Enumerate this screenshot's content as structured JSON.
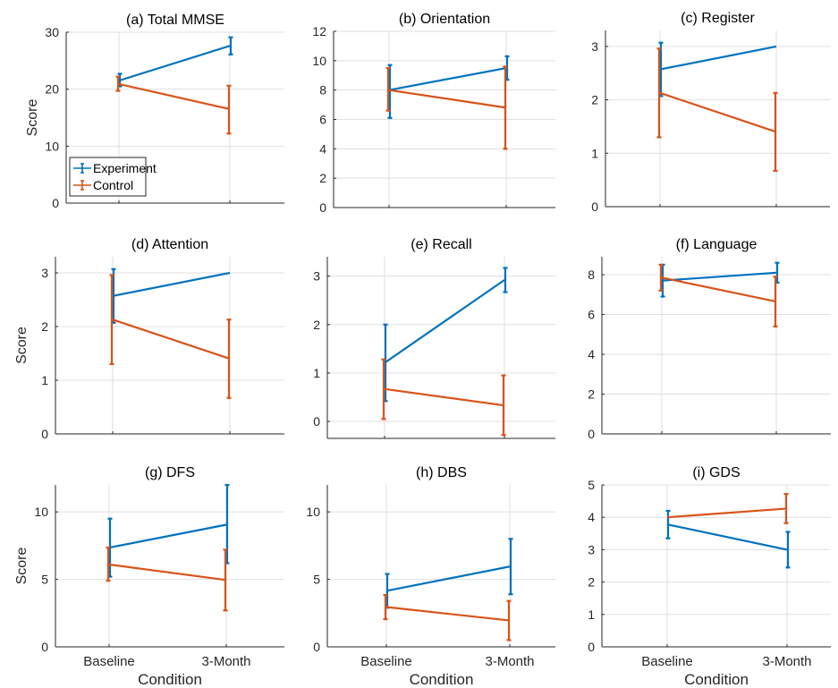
{
  "colors": {
    "experiment": "#0072BD",
    "control": "#D95319",
    "axis": "#262626",
    "grid": "#DFDFDF"
  },
  "chart_data": [
    {
      "type": "line",
      "title": "(a) Total MMSE",
      "ylabel": "Score",
      "xlabel": "",
      "categories": [
        "",
        ""
      ],
      "ylim": [
        0,
        30
      ],
      "yticks": [
        "0",
        "10",
        "20",
        "30"
      ],
      "grid": true,
      "legend": {
        "placement": "bottom-left",
        "entries": [
          "Experiment",
          "Control"
        ]
      },
      "series": [
        {
          "name": "Experiment",
          "values": [
            21.5,
            27.6
          ],
          "err_low": [
            20.5,
            26.1
          ],
          "err_high": [
            22.7,
            29.1
          ]
        },
        {
          "name": "Control",
          "values": [
            20.9,
            16.5
          ],
          "err_low": [
            19.7,
            12.2
          ],
          "err_high": [
            22.2,
            20.6
          ]
        }
      ]
    },
    {
      "type": "line",
      "title": "(b) Orientation",
      "ylabel": "",
      "xlabel": "",
      "categories": [
        "",
        ""
      ],
      "ylim": [
        0,
        12
      ],
      "yticks": [
        "0",
        "2",
        "4",
        "6",
        "8",
        "10",
        "12"
      ],
      "grid": true,
      "series": [
        {
          "name": "Experiment",
          "values": [
            8.0,
            9.5
          ],
          "err_low": [
            6.1,
            8.7
          ],
          "err_high": [
            9.7,
            10.3
          ]
        },
        {
          "name": "Control",
          "values": [
            8.0,
            6.8
          ],
          "err_low": [
            6.6,
            4.0
          ],
          "err_high": [
            9.5,
            9.6
          ]
        }
      ]
    },
    {
      "type": "line",
      "title": "(c) Register",
      "ylabel": "",
      "xlabel": "",
      "categories": [
        "",
        ""
      ],
      "ylim": [
        0,
        3.3
      ],
      "yticks": [
        "0",
        "1",
        "2",
        "3"
      ],
      "grid": true,
      "series": [
        {
          "name": "Experiment",
          "values": [
            2.57,
            3.0
          ],
          "err_low": [
            2.07,
            3.0
          ],
          "err_high": [
            3.07,
            3.0
          ]
        },
        {
          "name": "Control",
          "values": [
            2.13,
            1.4
          ],
          "err_low": [
            1.3,
            0.67
          ],
          "err_high": [
            2.96,
            2.13
          ]
        }
      ]
    },
    {
      "type": "line",
      "title": "(d) Attention",
      "ylabel": "Score",
      "xlabel": "",
      "categories": [
        "",
        ""
      ],
      "ylim": [
        0,
        3.3
      ],
      "yticks": [
        "0",
        "1",
        "2",
        "3"
      ],
      "grid": true,
      "series": [
        {
          "name": "Experiment",
          "values": [
            2.57,
            3.0
          ],
          "err_low": [
            2.07,
            3.0
          ],
          "err_high": [
            3.07,
            3.0
          ]
        },
        {
          "name": "Control",
          "values": [
            2.13,
            1.4
          ],
          "err_low": [
            1.3,
            0.67
          ],
          "err_high": [
            2.96,
            2.13
          ]
        }
      ]
    },
    {
      "type": "line",
      "title": "(e) Recall",
      "ylabel": "",
      "xlabel": "",
      "categories": [
        "",
        ""
      ],
      "ylim": [
        -0.35,
        3.4
      ],
      "yticks": [
        "0",
        "1",
        "2",
        "3"
      ],
      "grid": true,
      "series": [
        {
          "name": "Experiment",
          "values": [
            1.21,
            2.92
          ],
          "err_low": [
            0.42,
            2.67
          ],
          "err_high": [
            2.0,
            3.17
          ]
        },
        {
          "name": "Control",
          "values": [
            0.67,
            0.33
          ],
          "err_low": [
            0.05,
            -0.28
          ],
          "err_high": [
            1.28,
            0.95
          ]
        }
      ]
    },
    {
      "type": "line",
      "title": "(f) Language",
      "ylabel": "",
      "xlabel": "",
      "categories": [
        "",
        ""
      ],
      "ylim": [
        0,
        8.9
      ],
      "yticks": [
        "0",
        "2",
        "4",
        "6",
        "8"
      ],
      "grid": true,
      "series": [
        {
          "name": "Experiment",
          "values": [
            7.7,
            8.1
          ],
          "err_low": [
            6.9,
            7.6
          ],
          "err_high": [
            8.5,
            8.6
          ]
        },
        {
          "name": "Control",
          "values": [
            7.85,
            6.65
          ],
          "err_low": [
            7.2,
            5.4
          ],
          "err_high": [
            8.5,
            7.9
          ]
        }
      ]
    },
    {
      "type": "line",
      "title": "(g) DFS",
      "ylabel": "Score",
      "xlabel": "Condition",
      "categories": [
        "Baseline",
        "3-Month"
      ],
      "ylim": [
        0,
        12
      ],
      "yticks": [
        "0",
        "5",
        "10"
      ],
      "grid": true,
      "series": [
        {
          "name": "Experiment",
          "values": [
            7.35,
            9.05
          ],
          "err_low": [
            5.2,
            6.2
          ],
          "err_high": [
            9.5,
            12.0
          ]
        },
        {
          "name": "Control",
          "values": [
            6.1,
            4.95
          ],
          "err_low": [
            4.9,
            2.7
          ],
          "err_high": [
            7.35,
            7.2
          ]
        }
      ]
    },
    {
      "type": "line",
      "title": "(h) DBS",
      "ylabel": "",
      "xlabel": "Condition",
      "categories": [
        "Baseline",
        "3-Month"
      ],
      "ylim": [
        0,
        12
      ],
      "yticks": [
        "0",
        "5",
        "10"
      ],
      "grid": true,
      "series": [
        {
          "name": "Experiment",
          "values": [
            4.15,
            5.95
          ],
          "err_low": [
            2.9,
            3.9
          ],
          "err_high": [
            5.4,
            8.0
          ]
        },
        {
          "name": "Control",
          "values": [
            2.95,
            1.95
          ],
          "err_low": [
            2.05,
            0.5
          ],
          "err_high": [
            3.85,
            3.4
          ]
        }
      ]
    },
    {
      "type": "line",
      "title": "(i) GDS",
      "ylabel": "",
      "xlabel": "Condition",
      "categories": [
        "Baseline",
        "3-Month"
      ],
      "ylim": [
        0,
        5
      ],
      "yticks": [
        "0",
        "1",
        "2",
        "3",
        "4",
        "5"
      ],
      "grid": true,
      "series": [
        {
          "name": "Experiment",
          "values": [
            3.78,
            3.0
          ],
          "err_low": [
            3.35,
            2.45
          ],
          "err_high": [
            4.2,
            3.55
          ]
        },
        {
          "name": "Control",
          "values": [
            4.0,
            4.27
          ],
          "err_low": [
            4.0,
            3.82
          ],
          "err_high": [
            4.0,
            4.72
          ]
        }
      ]
    }
  ]
}
